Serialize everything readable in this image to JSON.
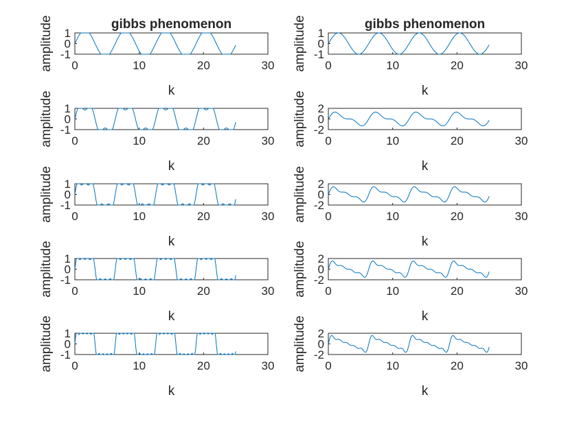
{
  "colors": {
    "line": "#0072bd",
    "axis": "#262626",
    "background": "#ffffff"
  },
  "chart_data": [
    {
      "type": "line",
      "title": "gibbs phenomenon",
      "xlabel": "k",
      "ylabel": "amplitude",
      "xlim": [
        0,
        30
      ],
      "ylim": [
        -1,
        1
      ],
      "xticks": [
        "0",
        "10",
        "20",
        "30"
      ],
      "yticks": [
        "-1",
        "0",
        "1"
      ],
      "series": [
        {
          "wave": "odd-harmonic square wave, 1 term",
          "x": [
            0,
            25
          ],
          "period": 6.28
        }
      ]
    },
    {
      "type": "line",
      "title": "gibbs phenomenon",
      "xlabel": "k",
      "ylabel": "amplitude",
      "xlim": [
        0,
        30
      ],
      "ylim": [
        -1,
        1
      ],
      "xticks": [
        "0",
        "10",
        "20",
        "30"
      ],
      "yticks": [
        "-1",
        "0",
        "1"
      ],
      "series": [
        {
          "wave": "all-harmonic sawtooth-like sum, 1 term",
          "x": [
            0,
            25
          ],
          "period": 6.28
        }
      ]
    },
    {
      "type": "line",
      "title": "",
      "xlabel": "k",
      "ylabel": "amplitude",
      "xlim": [
        0,
        30
      ],
      "ylim": [
        -1,
        1
      ],
      "xticks": [
        "0",
        "10",
        "20",
        "30"
      ],
      "yticks": [
        "-1",
        "0",
        "1"
      ],
      "series": [
        {
          "wave": "odd-harmonic square wave, 2 terms",
          "x": [
            0,
            25
          ],
          "period": 6.28
        }
      ]
    },
    {
      "type": "line",
      "title": "",
      "xlabel": "k",
      "ylabel": "amplitude",
      "xlim": [
        0,
        30
      ],
      "ylim": [
        -2,
        2
      ],
      "xticks": [
        "0",
        "10",
        "20",
        "30"
      ],
      "yticks": [
        "-2",
        "0",
        "2"
      ],
      "series": [
        {
          "wave": "all-harmonic sum, 2 terms",
          "x": [
            0,
            25
          ],
          "period": 6.28
        }
      ]
    },
    {
      "type": "line",
      "title": "",
      "xlabel": "k",
      "ylabel": "amplitude",
      "xlim": [
        0,
        30
      ],
      "ylim": [
        -1,
        1
      ],
      "xticks": [
        "0",
        "10",
        "20",
        "30"
      ],
      "yticks": [
        "-1",
        "0",
        "1"
      ],
      "series": [
        {
          "wave": "odd-harmonic square wave, 3 terms",
          "x": [
            0,
            25
          ],
          "period": 6.28
        }
      ]
    },
    {
      "type": "line",
      "title": "",
      "xlabel": "k",
      "ylabel": "amplitude",
      "xlim": [
        0,
        30
      ],
      "ylim": [
        -2,
        2
      ],
      "xticks": [
        "0",
        "10",
        "20",
        "30"
      ],
      "yticks": [
        "-2",
        "0",
        "2"
      ],
      "series": [
        {
          "wave": "all-harmonic sum, 3 terms",
          "x": [
            0,
            25
          ],
          "period": 6.28
        }
      ]
    },
    {
      "type": "line",
      "title": "",
      "xlabel": "k",
      "ylabel": "amplitude",
      "xlim": [
        0,
        30
      ],
      "ylim": [
        -1,
        1
      ],
      "xticks": [
        "0",
        "10",
        "20",
        "30"
      ],
      "yticks": [
        "-1",
        "0",
        "1"
      ],
      "series": [
        {
          "wave": "odd-harmonic square wave, 4 terms",
          "x": [
            0,
            25
          ],
          "period": 6.28
        }
      ]
    },
    {
      "type": "line",
      "title": "",
      "xlabel": "k",
      "ylabel": "amplitude",
      "xlim": [
        0,
        30
      ],
      "ylim": [
        -2,
        2
      ],
      "xticks": [
        "0",
        "10",
        "20",
        "30"
      ],
      "yticks": [
        "-2",
        "0",
        "2"
      ],
      "series": [
        {
          "wave": "all-harmonic sum, 4 terms",
          "x": [
            0,
            25
          ],
          "period": 6.28
        }
      ]
    },
    {
      "type": "line",
      "title": "",
      "xlabel": "k",
      "ylabel": "amplitude",
      "xlim": [
        0,
        30
      ],
      "ylim": [
        -1,
        1
      ],
      "xticks": [
        "0",
        "10",
        "20",
        "30"
      ],
      "yticks": [
        "-1",
        "0",
        "1"
      ],
      "series": [
        {
          "wave": "odd-harmonic square wave, 5 terms",
          "x": [
            0,
            25
          ],
          "period": 6.28
        }
      ]
    },
    {
      "type": "line",
      "title": "",
      "xlabel": "k",
      "ylabel": "amplitude",
      "xlim": [
        0,
        30
      ],
      "ylim": [
        -2,
        2
      ],
      "xticks": [
        "0",
        "10",
        "20",
        "30"
      ],
      "yticks": [
        "-2",
        "0",
        "2"
      ],
      "series": [
        {
          "wave": "all-harmonic sum, 5 terms",
          "x": [
            0,
            25
          ],
          "period": 6.28
        }
      ]
    }
  ]
}
